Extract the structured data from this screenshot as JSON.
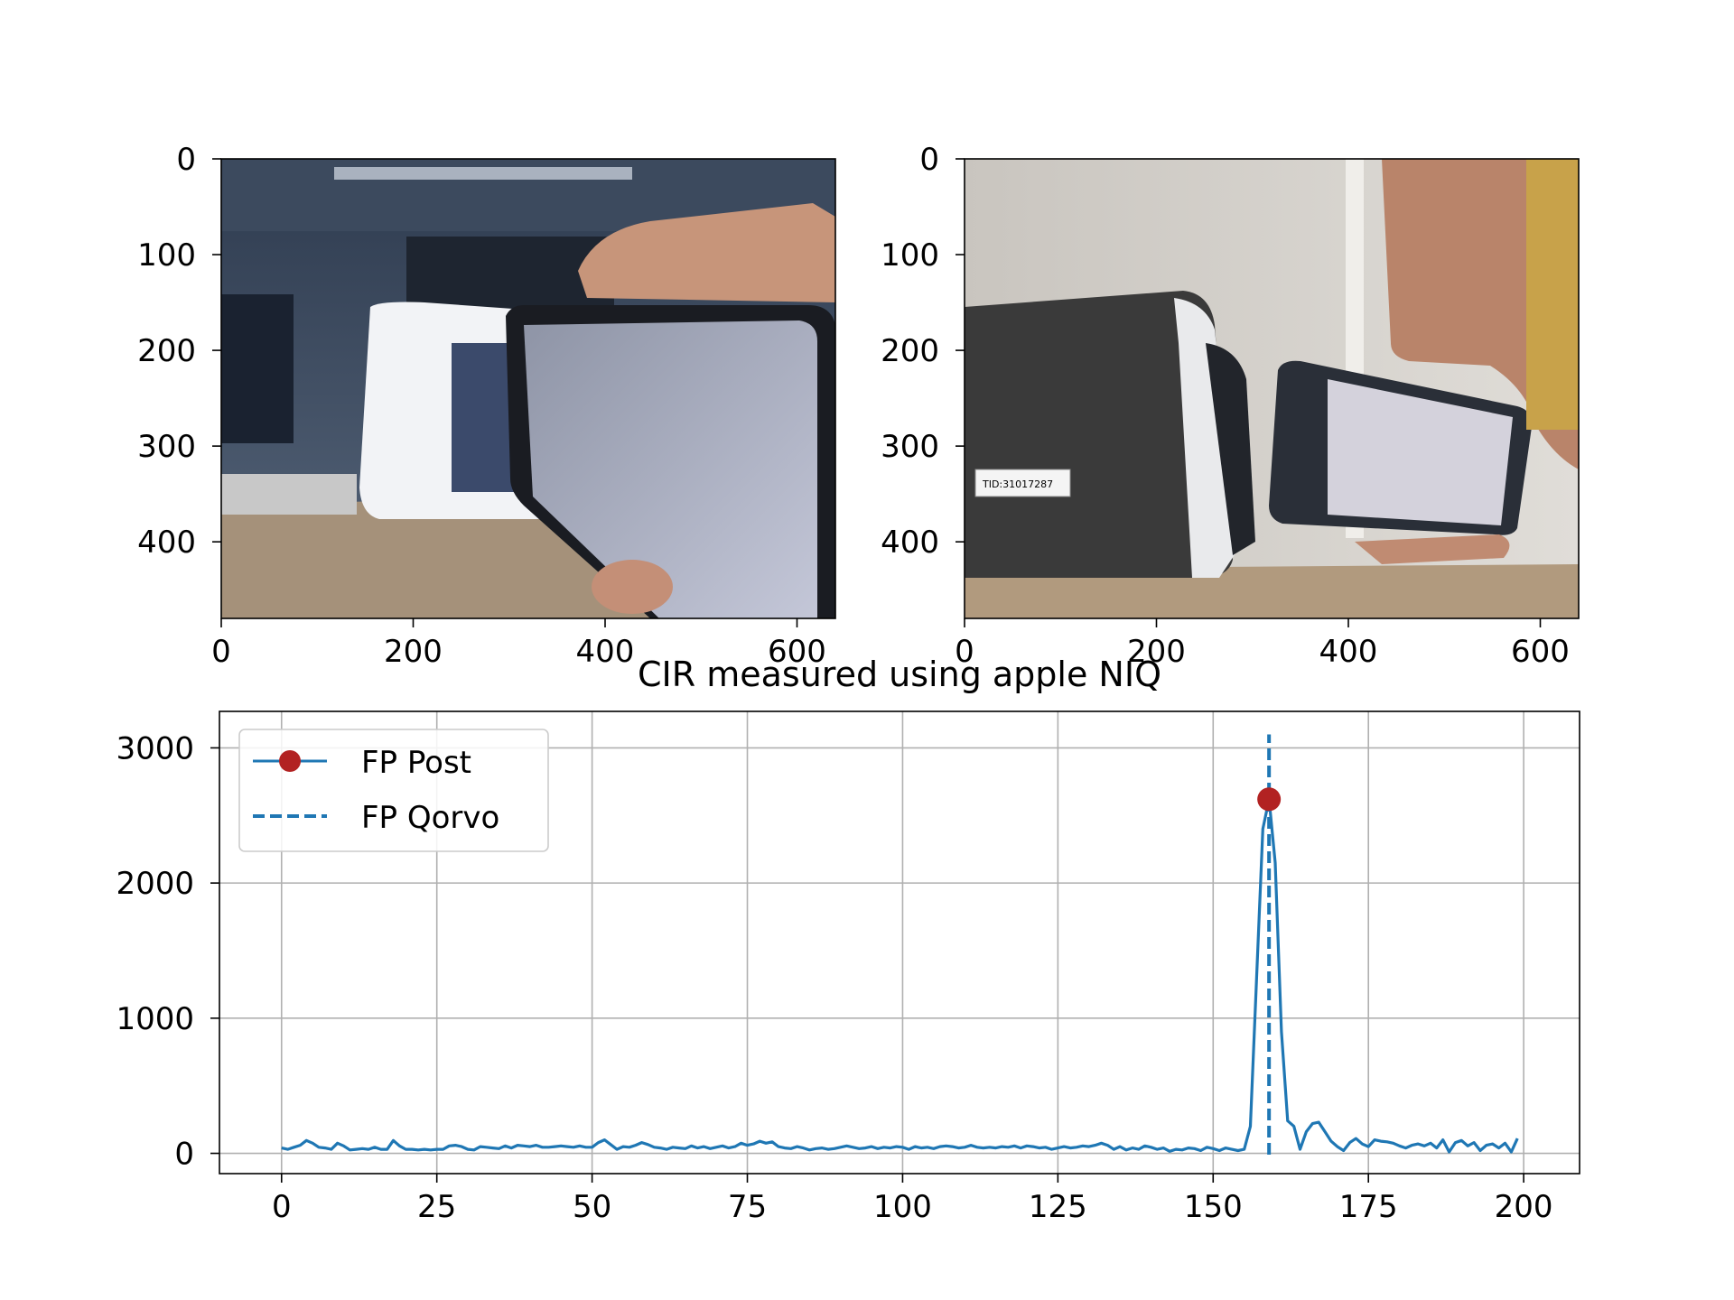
{
  "images": [
    {
      "name": "left-photo",
      "description_free": true,
      "xticks": [
        "0",
        "200",
        "400",
        "600"
      ],
      "yticks": [
        "0",
        "100",
        "200",
        "300",
        "400"
      ],
      "xlim": [
        0,
        640
      ],
      "ylim": [
        480,
        0
      ]
    },
    {
      "name": "right-photo",
      "xticks": [
        "0",
        "200",
        "400",
        "600"
      ],
      "yticks": [
        "0",
        "100",
        "200",
        "300",
        "400"
      ],
      "xlim": [
        0,
        640
      ],
      "ylim": [
        480,
        0
      ]
    }
  ],
  "chart_data": {
    "type": "line",
    "title": "CIR measured using apple NIQ",
    "xlabel": "",
    "ylabel": "",
    "xlim": [
      -10,
      209
    ],
    "ylim": [
      -150,
      3270
    ],
    "xticks": [
      0,
      25,
      50,
      75,
      100,
      125,
      150,
      175,
      200
    ],
    "yticks": [
      0,
      1000,
      2000,
      3000
    ],
    "grid": true,
    "legend_position": "upper-left",
    "series": [
      {
        "name": "FP Post",
        "color": "#1f77b4",
        "marker_color": "#b22222",
        "marker": {
          "x": 159,
          "y": 2620
        },
        "x_start": 0,
        "values": [
          40,
          30,
          45,
          60,
          95,
          75,
          45,
          40,
          30,
          75,
          55,
          25,
          30,
          35,
          30,
          45,
          30,
          30,
          95,
          55,
          30,
          30,
          25,
          30,
          25,
          30,
          30,
          55,
          60,
          50,
          30,
          25,
          50,
          45,
          40,
          35,
          55,
          40,
          60,
          55,
          50,
          60,
          45,
          45,
          50,
          55,
          50,
          45,
          55,
          45,
          45,
          80,
          100,
          65,
          30,
          50,
          45,
          60,
          80,
          65,
          45,
          40,
          30,
          45,
          40,
          35,
          55,
          40,
          50,
          35,
          45,
          55,
          40,
          50,
          75,
          60,
          70,
          90,
          75,
          85,
          50,
          40,
          35,
          50,
          40,
          25,
          35,
          40,
          30,
          35,
          45,
          55,
          45,
          35,
          40,
          50,
          35,
          45,
          40,
          50,
          45,
          30,
          50,
          40,
          45,
          35,
          50,
          55,
          50,
          40,
          45,
          60,
          45,
          40,
          45,
          40,
          50,
          45,
          55,
          40,
          55,
          50,
          40,
          45,
          30,
          40,
          50,
          40,
          45,
          55,
          50,
          60,
          75,
          60,
          30,
          50,
          25,
          40,
          30,
          55,
          45,
          30,
          40,
          15,
          30,
          25,
          40,
          35,
          20,
          45,
          35,
          20,
          40,
          30,
          20,
          30,
          200,
          1300,
          2400,
          2620,
          2150,
          900,
          240,
          200,
          30,
          160,
          220,
          230,
          160,
          90,
          50,
          20,
          80,
          110,
          70,
          50,
          100,
          90,
          85,
          75,
          55,
          40,
          60,
          70,
          55,
          75,
          40,
          100,
          10,
          80,
          95,
          55,
          80,
          20,
          60,
          70,
          40,
          75,
          10,
          110
        ]
      },
      {
        "name": "FP Qorvo",
        "color": "#1f77b4",
        "style": "dashed",
        "x": 159,
        "y_range": [
          -10,
          3100
        ]
      }
    ]
  }
}
